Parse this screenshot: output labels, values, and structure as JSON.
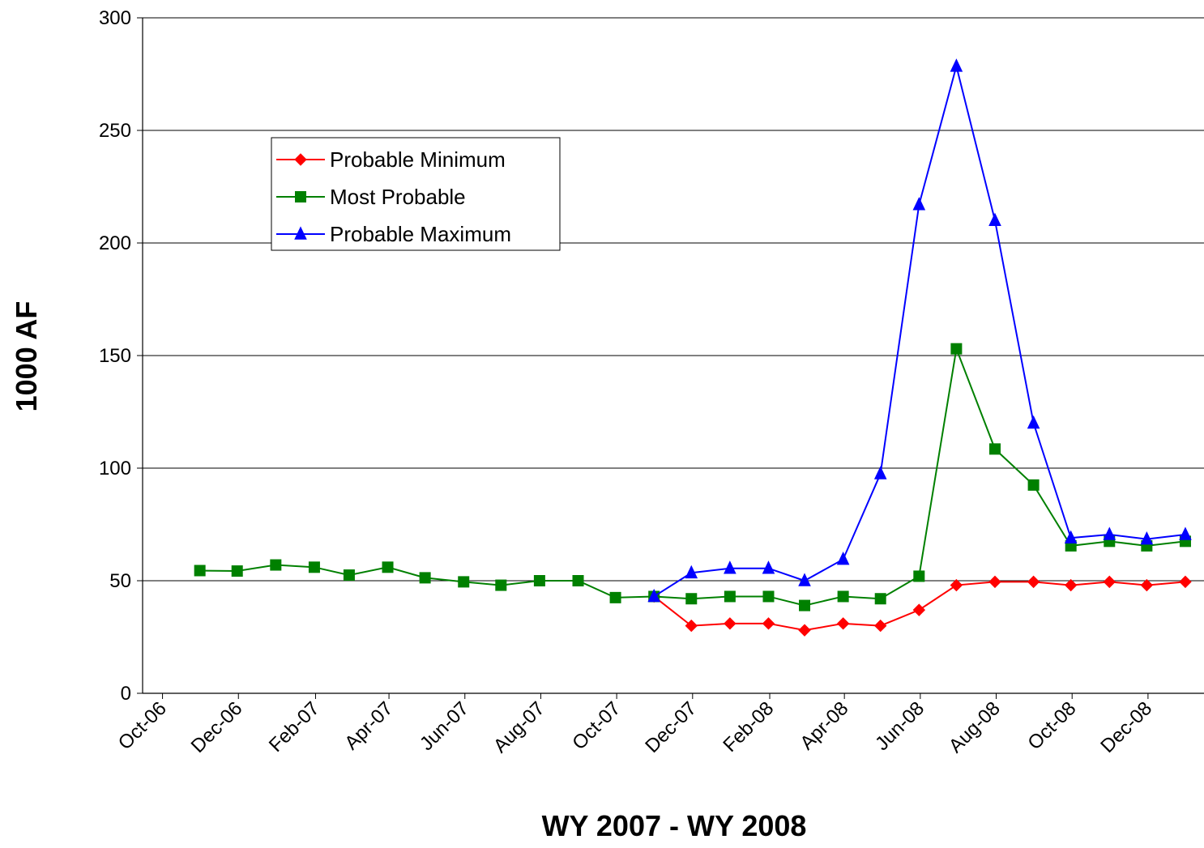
{
  "chart_data": {
    "type": "line",
    "xlabel": "WY 2007 - WY 2008",
    "ylabel": "1000 AF",
    "ylim": [
      0,
      300
    ],
    "yticks": [
      0,
      50,
      100,
      150,
      200,
      250,
      300
    ],
    "xlim": [
      "2006-09-15",
      "2009-01-15"
    ],
    "x_tick_labels": [
      {
        "date": "2006-10-01",
        "label": "Oct-06"
      },
      {
        "date": "2006-12-01",
        "label": "Dec-06"
      },
      {
        "date": "2007-02-01",
        "label": "Feb-07"
      },
      {
        "date": "2007-04-01",
        "label": "Apr-07"
      },
      {
        "date": "2007-06-01",
        "label": "Jun-07"
      },
      {
        "date": "2007-08-01",
        "label": "Aug-07"
      },
      {
        "date": "2007-10-01",
        "label": "Oct-07"
      },
      {
        "date": "2007-12-01",
        "label": "Dec-07"
      },
      {
        "date": "2008-02-01",
        "label": "Feb-08"
      },
      {
        "date": "2008-04-01",
        "label": "Apr-08"
      },
      {
        "date": "2008-06-01",
        "label": "Jun-08"
      },
      {
        "date": "2008-08-01",
        "label": "Aug-08"
      },
      {
        "date": "2008-10-01",
        "label": "Oct-08"
      },
      {
        "date": "2008-12-01",
        "label": "Dec-08"
      }
    ],
    "grid": "horizontal major",
    "legend_position": "upper-left inside plot",
    "series": [
      {
        "name": "Probable Minimum",
        "color": "#ff0000",
        "marker": "diamond",
        "points": [
          {
            "x": "2007-10-31",
            "y": 43
          },
          {
            "x": "2007-11-30",
            "y": 30
          },
          {
            "x": "2007-12-31",
            "y": 31
          },
          {
            "x": "2008-01-31",
            "y": 31
          },
          {
            "x": "2008-02-29",
            "y": 28
          },
          {
            "x": "2008-03-31",
            "y": 31
          },
          {
            "x": "2008-04-30",
            "y": 30
          },
          {
            "x": "2008-05-31",
            "y": 37
          },
          {
            "x": "2008-06-30",
            "y": 48
          },
          {
            "x": "2008-07-31",
            "y": 49.5
          },
          {
            "x": "2008-08-31",
            "y": 49.5
          },
          {
            "x": "2008-09-30",
            "y": 48
          },
          {
            "x": "2008-10-31",
            "y": 49.5
          },
          {
            "x": "2008-11-30",
            "y": 48
          },
          {
            "x": "2008-12-31",
            "y": 49.5
          }
        ]
      },
      {
        "name": "Most Probable",
        "color": "#008000",
        "marker": "square",
        "points": [
          {
            "x": "2006-10-31",
            "y": 54.5
          },
          {
            "x": "2006-11-30",
            "y": 54.3
          },
          {
            "x": "2006-12-31",
            "y": 57
          },
          {
            "x": "2007-01-31",
            "y": 56
          },
          {
            "x": "2007-02-28",
            "y": 52.5
          },
          {
            "x": "2007-03-31",
            "y": 56
          },
          {
            "x": "2007-04-30",
            "y": 51.3
          },
          {
            "x": "2007-05-31",
            "y": 49.5
          },
          {
            "x": "2007-06-30",
            "y": 48
          },
          {
            "x": "2007-07-31",
            "y": 50
          },
          {
            "x": "2007-08-31",
            "y": 50
          },
          {
            "x": "2007-09-30",
            "y": 42.5
          },
          {
            "x": "2007-10-31",
            "y": 43
          },
          {
            "x": "2007-11-30",
            "y": 42
          },
          {
            "x": "2007-12-31",
            "y": 43
          },
          {
            "x": "2008-01-31",
            "y": 43
          },
          {
            "x": "2008-02-29",
            "y": 39
          },
          {
            "x": "2008-03-31",
            "y": 43
          },
          {
            "x": "2008-04-30",
            "y": 42
          },
          {
            "x": "2008-05-31",
            "y": 52
          },
          {
            "x": "2008-06-30",
            "y": 153
          },
          {
            "x": "2008-07-31",
            "y": 108.5
          },
          {
            "x": "2008-08-31",
            "y": 92.5
          },
          {
            "x": "2008-09-30",
            "y": 65.5
          },
          {
            "x": "2008-10-31",
            "y": 67.5
          },
          {
            "x": "2008-11-30",
            "y": 65.5
          },
          {
            "x": "2008-12-31",
            "y": 67.5
          }
        ]
      },
      {
        "name": "Probable Maximum",
        "color": "#0000ff",
        "marker": "triangle",
        "points": [
          {
            "x": "2007-10-31",
            "y": 43
          },
          {
            "x": "2007-11-30",
            "y": 53.5
          },
          {
            "x": "2007-12-31",
            "y": 55.5
          },
          {
            "x": "2008-01-31",
            "y": 55.5
          },
          {
            "x": "2008-02-29",
            "y": 50
          },
          {
            "x": "2008-03-31",
            "y": 59.5
          },
          {
            "x": "2008-04-30",
            "y": 97.5
          },
          {
            "x": "2008-05-31",
            "y": 217
          },
          {
            "x": "2008-06-30",
            "y": 278.5
          },
          {
            "x": "2008-07-31",
            "y": 210
          },
          {
            "x": "2008-08-31",
            "y": 120
          },
          {
            "x": "2008-09-30",
            "y": 69
          },
          {
            "x": "2008-10-31",
            "y": 70.5
          },
          {
            "x": "2008-11-30",
            "y": 68.5
          },
          {
            "x": "2008-12-31",
            "y": 70.5
          }
        ]
      }
    ]
  }
}
